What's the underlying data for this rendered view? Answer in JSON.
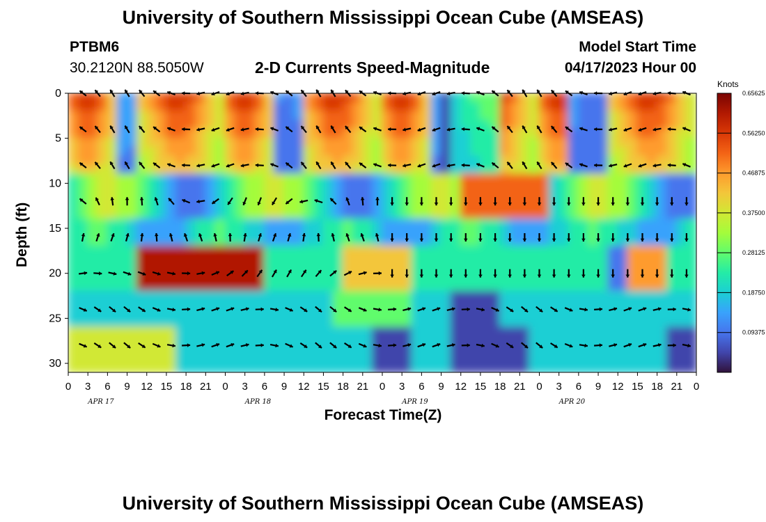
{
  "header": {
    "title": "University of Southern Mississippi Ocean Cube (AMSEAS)",
    "station": "PTBM6",
    "coords": "30.2120N  88.5050W",
    "subtitle": "2-D Currents Speed-Magnitude",
    "model_start_label": "Model Start Time",
    "model_start": "04/17/2023 Hour 00"
  },
  "footer": {
    "title": "University of Southern Mississippi Ocean Cube (AMSEAS)"
  },
  "chart_data": {
    "type": "heatmap",
    "title": "2-D Currents Speed-Magnitude",
    "xlabel": "Forecast Time(Z)",
    "ylabel": "Depth (ft)",
    "x_ticks": [
      "0",
      "3",
      "6",
      "9",
      "12",
      "15",
      "18",
      "21",
      "0",
      "3",
      "6",
      "9",
      "12",
      "15",
      "18",
      "21",
      "0",
      "3",
      "6",
      "9",
      "12",
      "15",
      "18",
      "21",
      "0",
      "3",
      "6",
      "9",
      "12",
      "15",
      "18",
      "21",
      "0"
    ],
    "date_labels": [
      "APR 17",
      "APR 18",
      "APR 19",
      "APR 20"
    ],
    "y_ticks": [
      "0",
      "5",
      "10",
      "15",
      "20",
      "25",
      "30"
    ],
    "xlim": [
      0,
      96
    ],
    "ylim": [
      0,
      31
    ],
    "colorbar_unit": "Knots",
    "colorbar_ticks": [
      "0.65625",
      "0.56250",
      "0.46875",
      "0.37500",
      "0.28125",
      "0.18750",
      "0.09375"
    ],
    "colorbar_range": [
      0,
      0.65625
    ],
    "colors": [
      "#30123b",
      "#4145ab",
      "#4675ed",
      "#39a2fc",
      "#1bcfd4",
      "#24eca6",
      "#61fc6c",
      "#a4fc3b",
      "#d1e834",
      "#f3c63a",
      "#fe9b2d",
      "#f36315",
      "#d93806",
      "#b11901",
      "#7a0403"
    ],
    "grid": false
  }
}
